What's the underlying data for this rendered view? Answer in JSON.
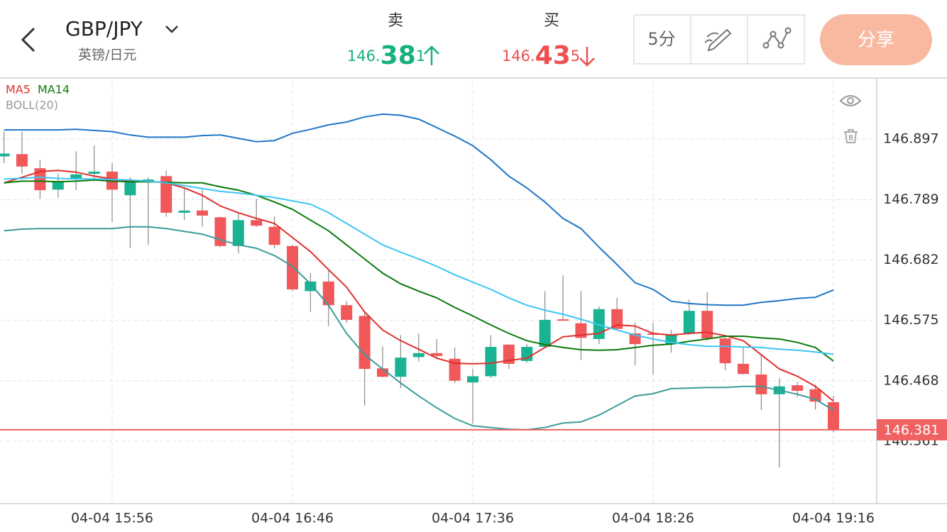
{
  "header": {
    "title": "GBP/JPY",
    "subtitle": "英镑/日元",
    "sell": {
      "label": "卖",
      "price": {
        "lead": "146.",
        "big": "38",
        "tail": "1"
      },
      "color": "#16b07e"
    },
    "buy": {
      "label": "买",
      "price": {
        "lead": "146.",
        "big": "43",
        "tail": "5"
      },
      "color": "#ef4f4f"
    },
    "interval": "5分",
    "share": "分享"
  },
  "chart_data": {
    "type": "candlestick",
    "legend": [
      {
        "name": "MA5",
        "color": "#e0302c"
      },
      {
        "name": "MA14",
        "color": "#0b7a0b"
      },
      {
        "name": "BOLL(20)",
        "color": "#999999"
      }
    ],
    "categories": [
      null,
      null,
      null,
      null,
      null,
      null,
      "04-04 15:56",
      null,
      null,
      null,
      null,
      null,
      null,
      null,
      null,
      null,
      "04-04 16:46",
      null,
      null,
      null,
      null,
      null,
      null,
      null,
      null,
      null,
      "04-04 17:36",
      null,
      null,
      null,
      null,
      null,
      null,
      null,
      null,
      null,
      "04-04 18:26",
      null,
      null,
      null,
      null,
      null,
      null,
      null,
      null,
      null,
      "04-04 19:16"
    ],
    "open": [
      146.866,
      146.87,
      146.845,
      146.807,
      146.826,
      146.835,
      146.839,
      146.797,
      146.821,
      146.831,
      146.766,
      146.77,
      146.758,
      146.707,
      146.753,
      146.741,
      146.707,
      146.627,
      146.644,
      146.602,
      146.583,
      146.49,
      146.475,
      146.51,
      146.517,
      146.507,
      146.465,
      146.476,
      146.532,
      146.503,
      146.528,
      146.577,
      146.57,
      146.542,
      146.595,
      146.552,
      146.552,
      146.533,
      146.551,
      146.592,
      146.543,
      146.498,
      146.479,
      146.444,
      146.46,
      146.453,
      146.43
    ],
    "high": [
      146.91,
      146.91,
      146.86,
      146.835,
      146.875,
      146.885,
      146.854,
      146.829,
      146.829,
      146.841,
      146.81,
      146.81,
      146.759,
      146.766,
      146.791,
      146.759,
      146.709,
      146.659,
      146.665,
      146.609,
      146.59,
      146.529,
      146.549,
      146.552,
      146.542,
      146.527,
      146.489,
      146.549,
      146.533,
      146.533,
      146.627,
      146.655,
      146.627,
      146.6,
      146.615,
      146.571,
      146.571,
      146.558,
      146.612,
      146.625,
      146.546,
      146.529,
      146.514,
      146.473,
      146.466,
      146.461,
      146.441
    ],
    "low": [
      146.854,
      146.835,
      146.791,
      146.793,
      146.806,
      146.822,
      146.749,
      146.703,
      146.709,
      146.759,
      146.753,
      146.741,
      146.705,
      146.694,
      146.741,
      146.703,
      146.627,
      146.59,
      146.565,
      146.571,
      146.424,
      146.474,
      146.455,
      146.502,
      146.507,
      146.464,
      146.392,
      146.473,
      146.489,
      146.5,
      146.526,
      146.575,
      146.505,
      146.533,
      146.557,
      146.495,
      146.479,
      146.518,
      146.549,
      146.539,
      146.487,
      146.479,
      146.416,
      146.314,
      146.439,
      146.417,
      146.376
    ],
    "close": [
      146.871,
      146.848,
      146.806,
      146.822,
      146.834,
      146.839,
      146.807,
      146.822,
      146.825,
      146.766,
      146.77,
      146.761,
      146.707,
      146.753,
      146.743,
      146.709,
      146.63,
      146.644,
      146.602,
      146.576,
      146.489,
      146.475,
      146.509,
      146.517,
      146.512,
      146.468,
      146.476,
      146.528,
      146.498,
      146.528,
      146.576,
      146.575,
      146.544,
      146.595,
      146.56,
      146.533,
      146.551,
      146.549,
      146.592,
      146.543,
      146.499,
      146.48,
      146.444,
      146.458,
      146.45,
      146.431,
      146.381
    ],
    "up_color": "#19b393",
    "down_color": "#f0585a",
    "lines": [
      {
        "name": "MA5",
        "color": "#e0302c",
        "values": [
          146.819,
          146.829,
          146.839,
          146.841,
          146.838,
          146.831,
          146.826,
          146.822,
          146.822,
          146.819,
          146.81,
          146.797,
          146.778,
          146.766,
          146.756,
          146.747,
          146.722,
          146.697,
          146.665,
          146.634,
          146.59,
          146.558,
          146.539,
          146.524,
          146.508,
          146.499,
          146.498,
          146.499,
          146.504,
          146.508,
          146.527,
          146.546,
          146.549,
          146.552,
          146.567,
          146.565,
          146.552,
          146.549,
          146.552,
          146.554,
          146.548,
          146.539,
          146.514,
          146.489,
          146.476,
          146.458,
          146.432
        ]
      },
      {
        "name": "MA14",
        "color": "#0b7a0b",
        "values": [
          146.819,
          146.822,
          146.822,
          146.821,
          146.822,
          146.824,
          146.822,
          146.821,
          146.821,
          146.82,
          146.819,
          146.819,
          146.812,
          146.806,
          146.797,
          146.785,
          146.772,
          146.753,
          146.734,
          146.709,
          146.684,
          146.659,
          146.64,
          146.627,
          146.615,
          146.598,
          146.583,
          146.567,
          146.552,
          146.539,
          146.532,
          146.527,
          146.523,
          146.522,
          146.523,
          146.527,
          146.531,
          146.533,
          146.538,
          146.542,
          146.547,
          146.547,
          146.544,
          146.542,
          146.536,
          146.527,
          146.503
        ]
      },
      {
        "color": "#2176c7",
        "values": [
          146.913,
          146.913,
          146.913,
          146.913,
          146.914,
          146.912,
          146.91,
          146.904,
          146.9,
          146.9,
          146.9,
          146.903,
          146.904,
          146.898,
          146.892,
          146.894,
          146.907,
          146.914,
          146.922,
          146.927,
          146.936,
          146.941,
          146.939,
          146.932,
          146.917,
          146.902,
          146.885,
          146.86,
          146.831,
          146.81,
          146.785,
          146.756,
          146.738,
          146.705,
          146.674,
          146.642,
          146.63,
          146.609,
          146.605,
          146.603,
          146.602,
          146.602,
          146.607,
          146.61,
          146.614,
          146.616,
          146.629
        ]
      },
      {
        "color": "#3bc6f4",
        "values": [
          146.826,
          146.827,
          146.829,
          146.827,
          146.826,
          146.826,
          146.825,
          146.824,
          146.822,
          146.819,
          146.814,
          146.809,
          146.804,
          146.801,
          146.797,
          146.793,
          146.787,
          146.781,
          146.766,
          146.747,
          146.728,
          146.709,
          146.696,
          146.684,
          146.671,
          146.656,
          146.643,
          146.63,
          146.615,
          146.602,
          146.593,
          146.586,
          146.577,
          146.567,
          146.558,
          146.549,
          146.542,
          146.536,
          146.532,
          146.529,
          146.529,
          146.528,
          146.527,
          146.524,
          146.522,
          146.519,
          146.515
        ]
      },
      {
        "color": "#3a9c9a",
        "values": [
          146.734,
          146.737,
          146.738,
          146.738,
          146.738,
          146.738,
          146.738,
          146.741,
          146.741,
          146.738,
          146.733,
          146.728,
          146.718,
          146.709,
          146.703,
          146.69,
          146.671,
          146.64,
          146.602,
          146.552,
          146.514,
          146.489,
          146.464,
          146.441,
          146.42,
          146.401,
          146.388,
          146.385,
          146.382,
          146.381,
          146.385,
          146.393,
          146.395,
          146.407,
          146.424,
          146.441,
          146.445,
          146.454,
          146.455,
          146.456,
          146.456,
          146.458,
          146.458,
          146.451,
          146.444,
          146.435,
          146.416
        ]
      }
    ],
    "ylim": [
      146.25,
      147.005
    ],
    "yticks": [
      146.897,
      146.789,
      146.682,
      146.575,
      146.468,
      146.361
    ],
    "last_price": 146.381,
    "last_color": "#f06262",
    "grid": true
  }
}
